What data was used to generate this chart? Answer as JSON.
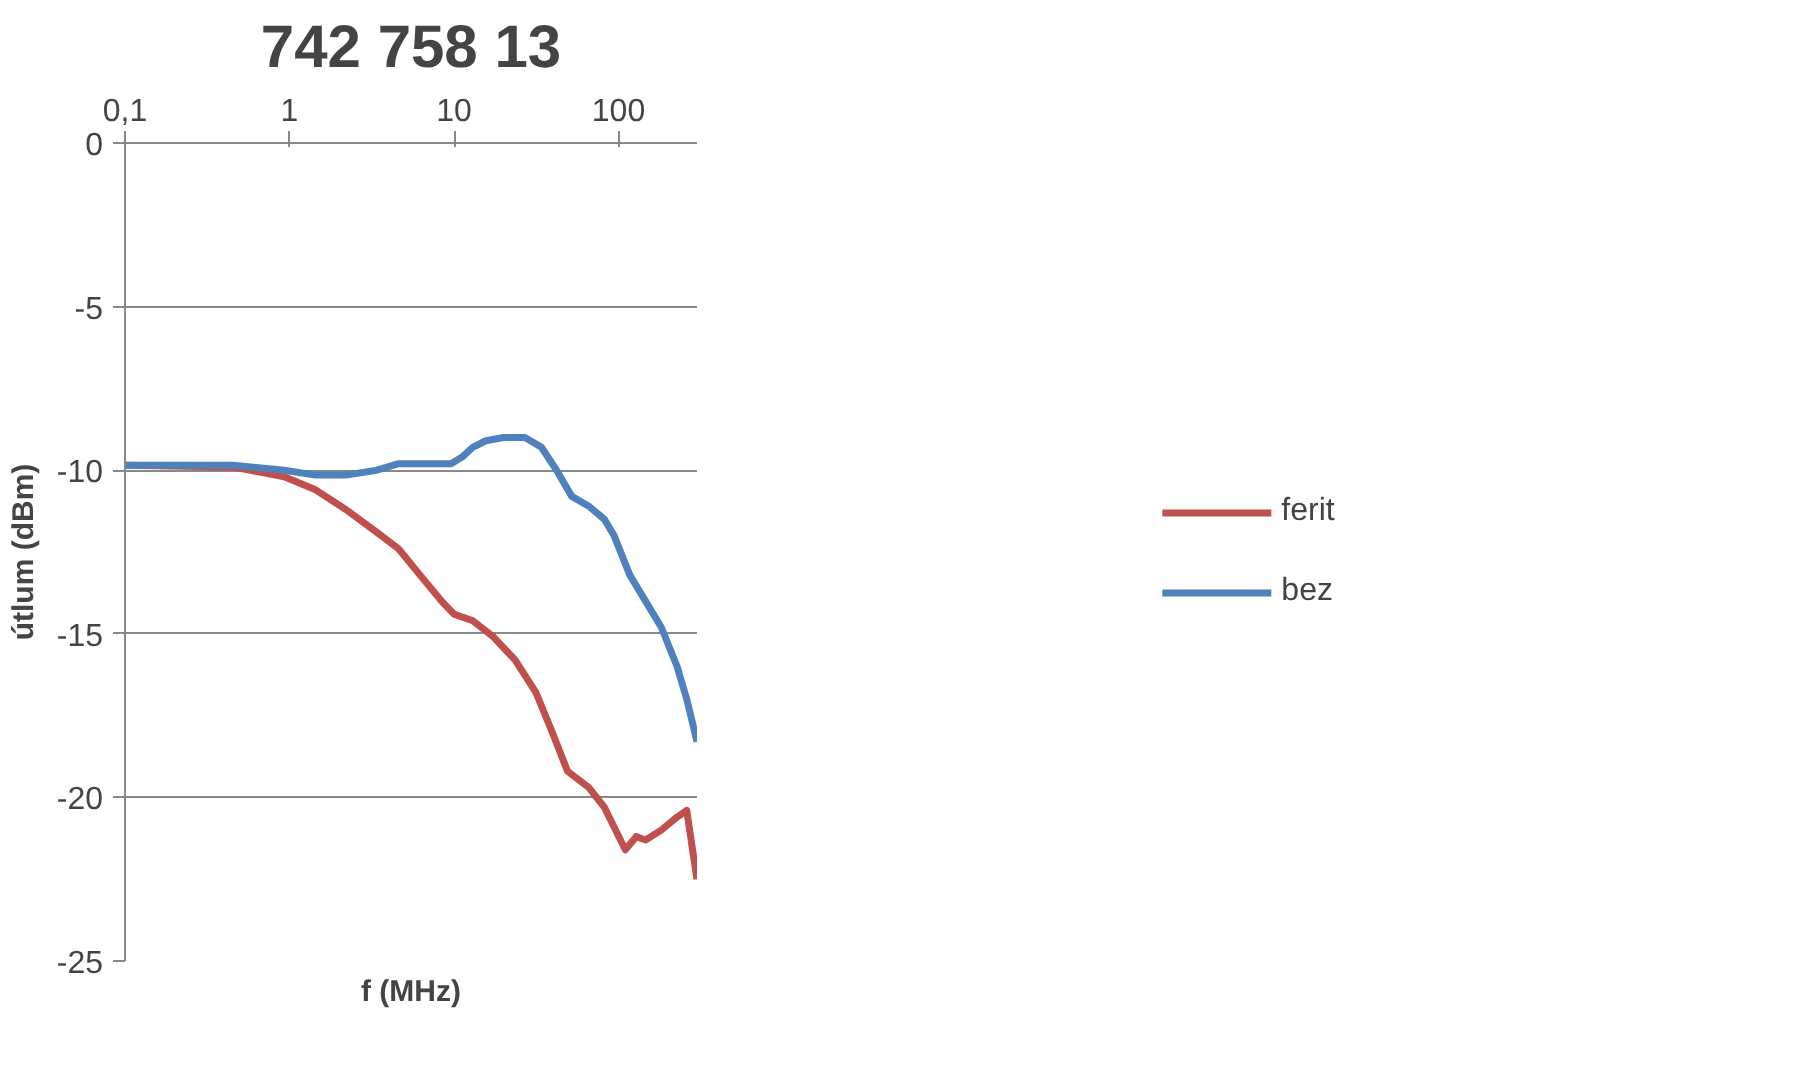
{
  "chart_data": {
    "type": "line",
    "title": "742 758 13",
    "xlabel": "f (MHz)",
    "ylabel": "útlum (dBm)",
    "log": "x",
    "xlim": [
      0.1,
      300
    ],
    "xticks": [
      {
        "value": 0.1,
        "label": "0,1"
      },
      1,
      10,
      100
    ],
    "ylim": [
      -25,
      0
    ],
    "yticks": [
      0,
      -5,
      -10,
      -15,
      -20,
      -25
    ],
    "grid": "y",
    "legend": "right",
    "marker": "none",
    "line_style": "solid",
    "series": [
      {
        "name": "ferit",
        "color": "#c0504d",
        "x": [
          0.1,
          0.45,
          0.93,
          1.44,
          2.2,
          3.4,
          4.6,
          6.2,
          8.4,
          10,
          13,
          17.4,
          23.5,
          31.5,
          39.5,
          49,
          66,
          82,
          110,
          128,
          146,
          182,
          227,
          260,
          280,
          300
        ],
        "values": [
          -9.85,
          -9.9,
          -10.2,
          -10.6,
          -11.2,
          -11.9,
          -12.4,
          -13.2,
          -14.0,
          -14.4,
          -14.6,
          -15.1,
          -15.8,
          -16.8,
          -18.0,
          -19.2,
          -19.7,
          -20.3,
          -21.6,
          -21.2,
          -21.3,
          -21.0,
          -20.6,
          -20.4,
          -21.5,
          -22.5
        ]
      },
      {
        "name": "bez",
        "color": "#4f81bd",
        "x": [
          0.1,
          0.45,
          0.93,
          1.44,
          2.2,
          3.4,
          4.6,
          7.3,
          9.6,
          11.2,
          13,
          15.6,
          20,
          27,
          34,
          42,
          52,
          66,
          82,
          94,
          117,
          146,
          182,
          227,
          260,
          300
        ],
        "values": [
          -9.85,
          -9.85,
          -10.0,
          -10.15,
          -10.15,
          -10.0,
          -9.8,
          -9.8,
          -9.8,
          -9.6,
          -9.3,
          -9.1,
          -9.0,
          -9.0,
          -9.3,
          -10.0,
          -10.8,
          -11.1,
          -11.5,
          -12.0,
          -13.2,
          -14.0,
          -14.8,
          -16.0,
          -17.0,
          -18.3
        ]
      }
    ]
  }
}
